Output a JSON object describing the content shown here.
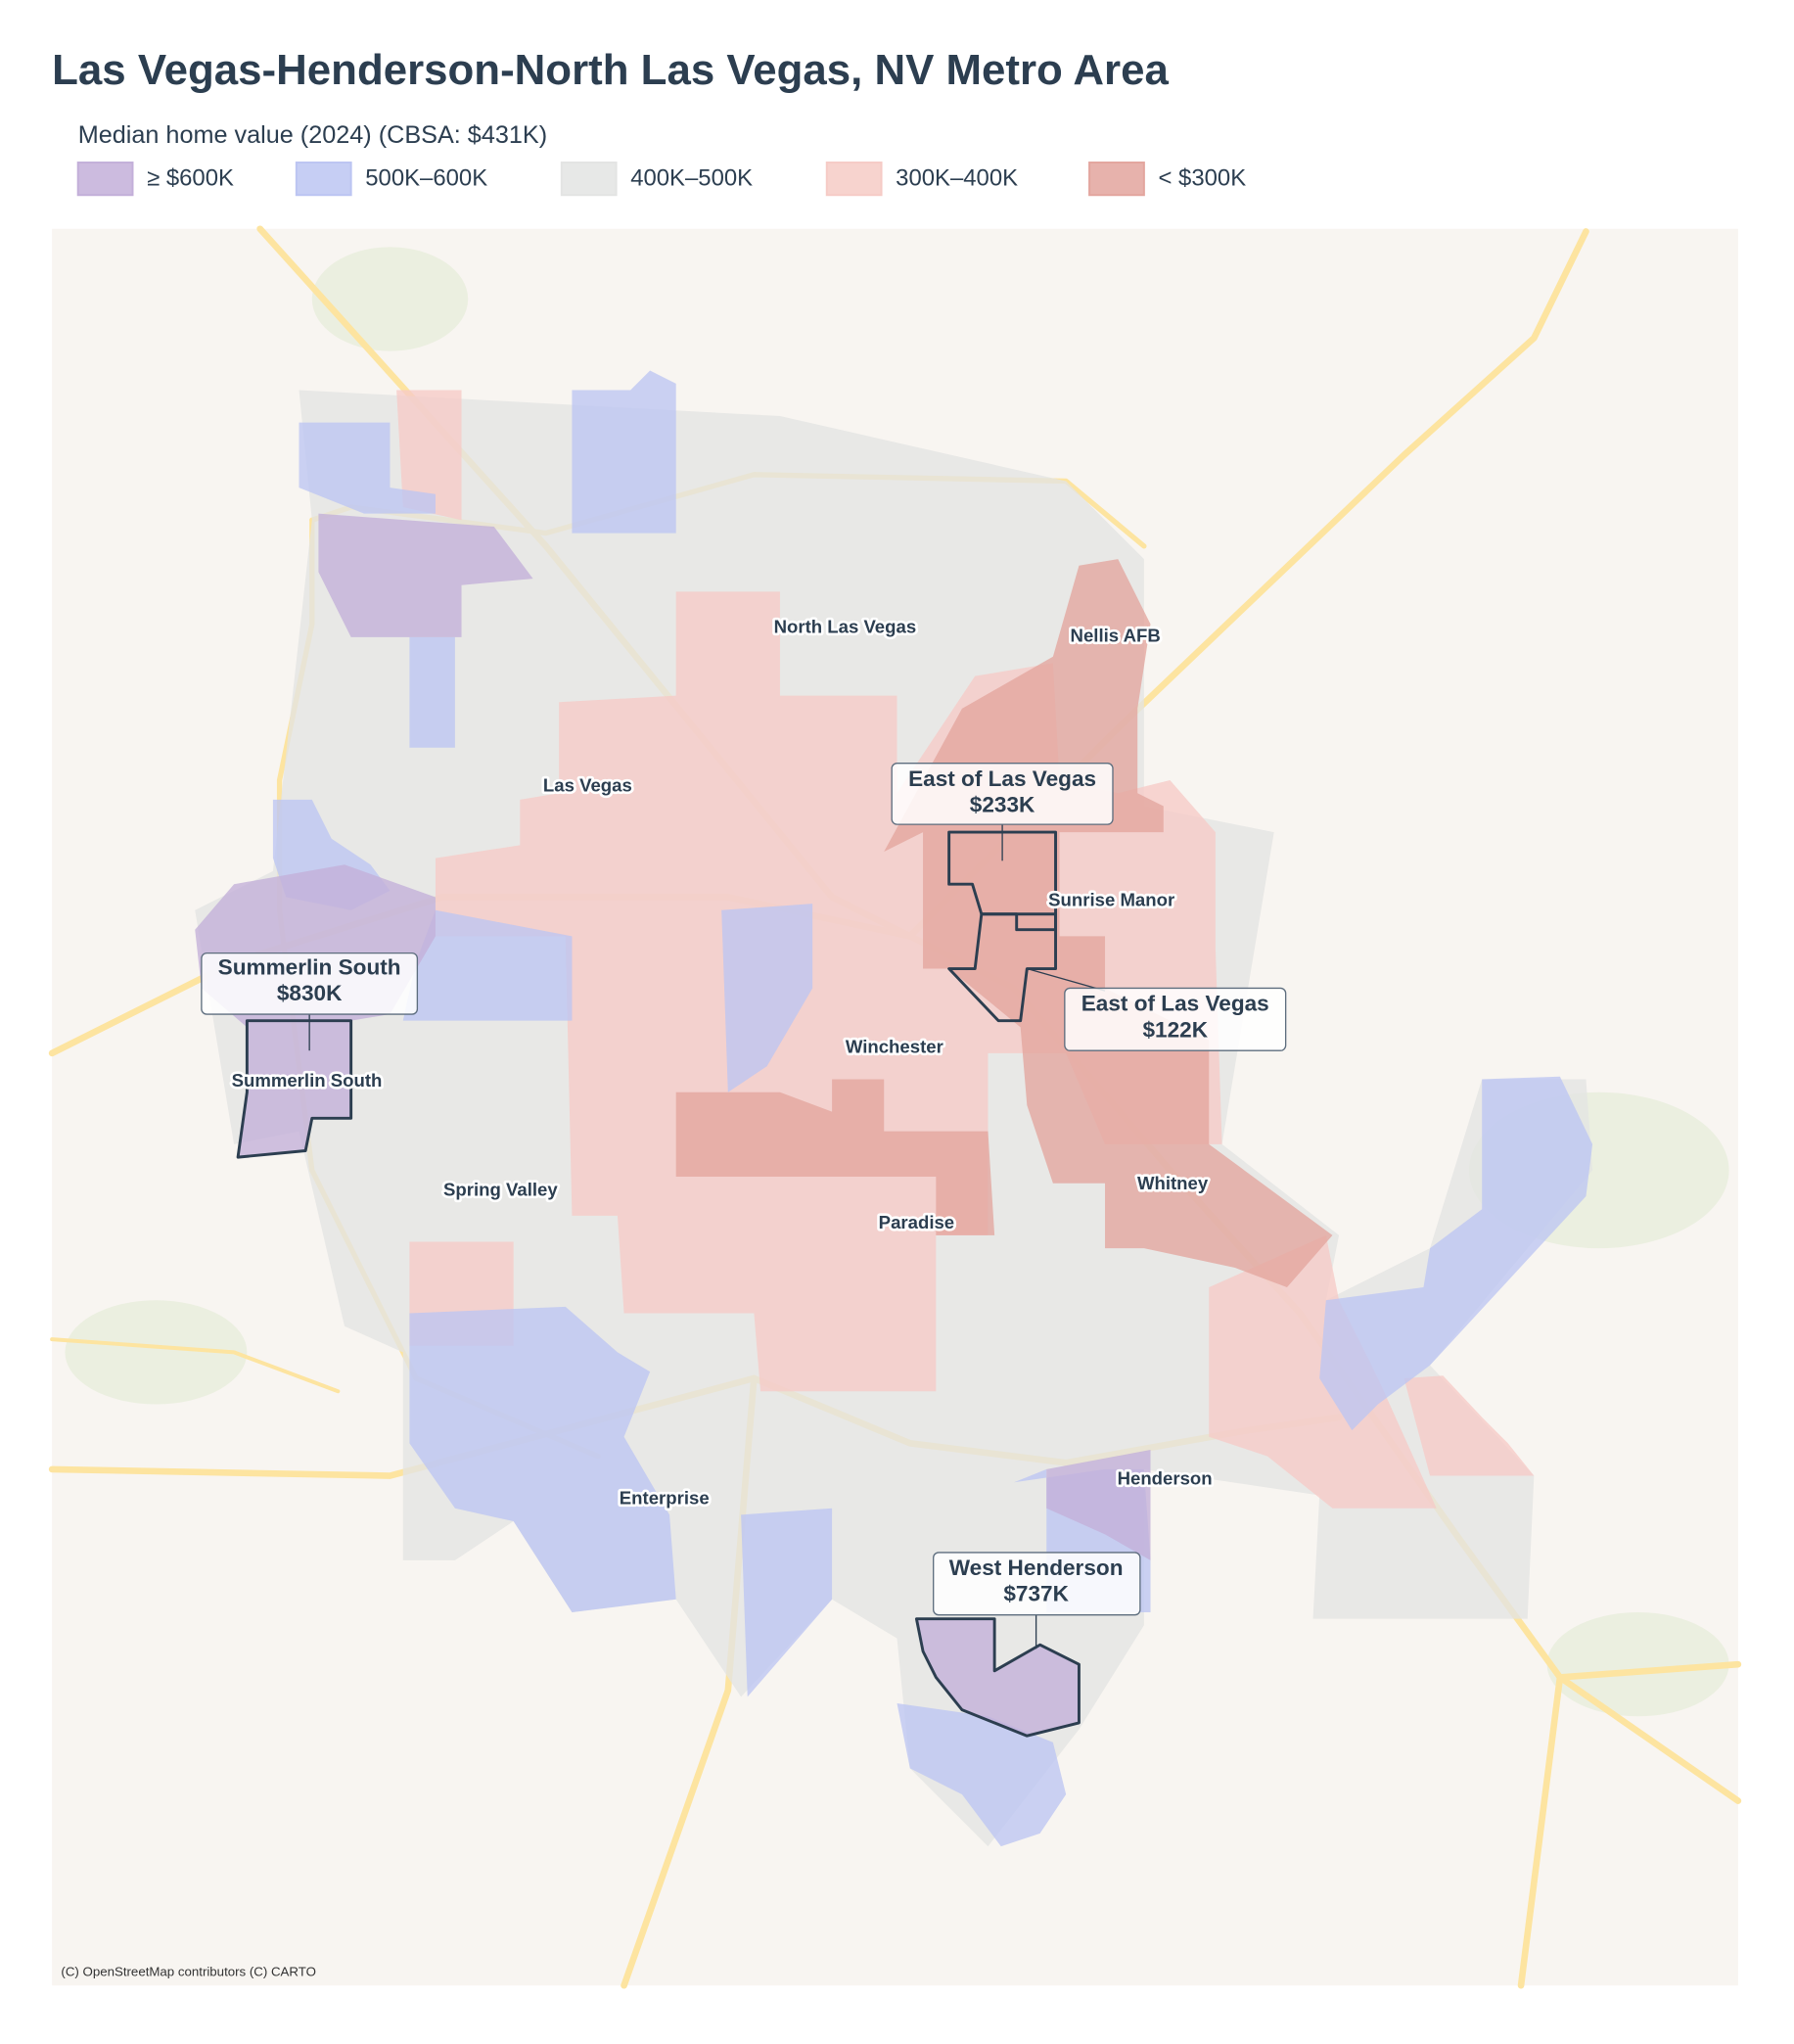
{
  "title": "Las Vegas-Henderson-North Las Vegas, NV Metro Area",
  "legend": {
    "title": "Median home value (2024)  (CBSA: $431K)",
    "items": [
      {
        "label": "≥ $600K",
        "color": "#c3afd9"
      },
      {
        "label": "500K–600K",
        "color": "#bcc5f2"
      },
      {
        "label": "400K–500K",
        "color": "#e3e4e3"
      },
      {
        "label": "300K–400K",
        "color": "#f6cbc6"
      },
      {
        "label": "< $300K",
        "color": "#e3a59e"
      }
    ]
  },
  "places": [
    "North Las Vegas",
    "Nellis AFB",
    "Las Vegas",
    "Sunrise Manor",
    "Summerlin South",
    "Winchester",
    "Spring Valley",
    "Whitney",
    "Paradise",
    "Henderson",
    "Enterprise"
  ],
  "callouts": [
    {
      "name": "Summerlin South",
      "value": "$830K"
    },
    {
      "name": "East of Las Vegas",
      "value": "$233K"
    },
    {
      "name": "East of Las Vegas",
      "value": "$122K"
    },
    {
      "name": "West Henderson",
      "value": "$737K"
    }
  ],
  "attribution": "(C) OpenStreetMap contributors (C) CARTO"
}
